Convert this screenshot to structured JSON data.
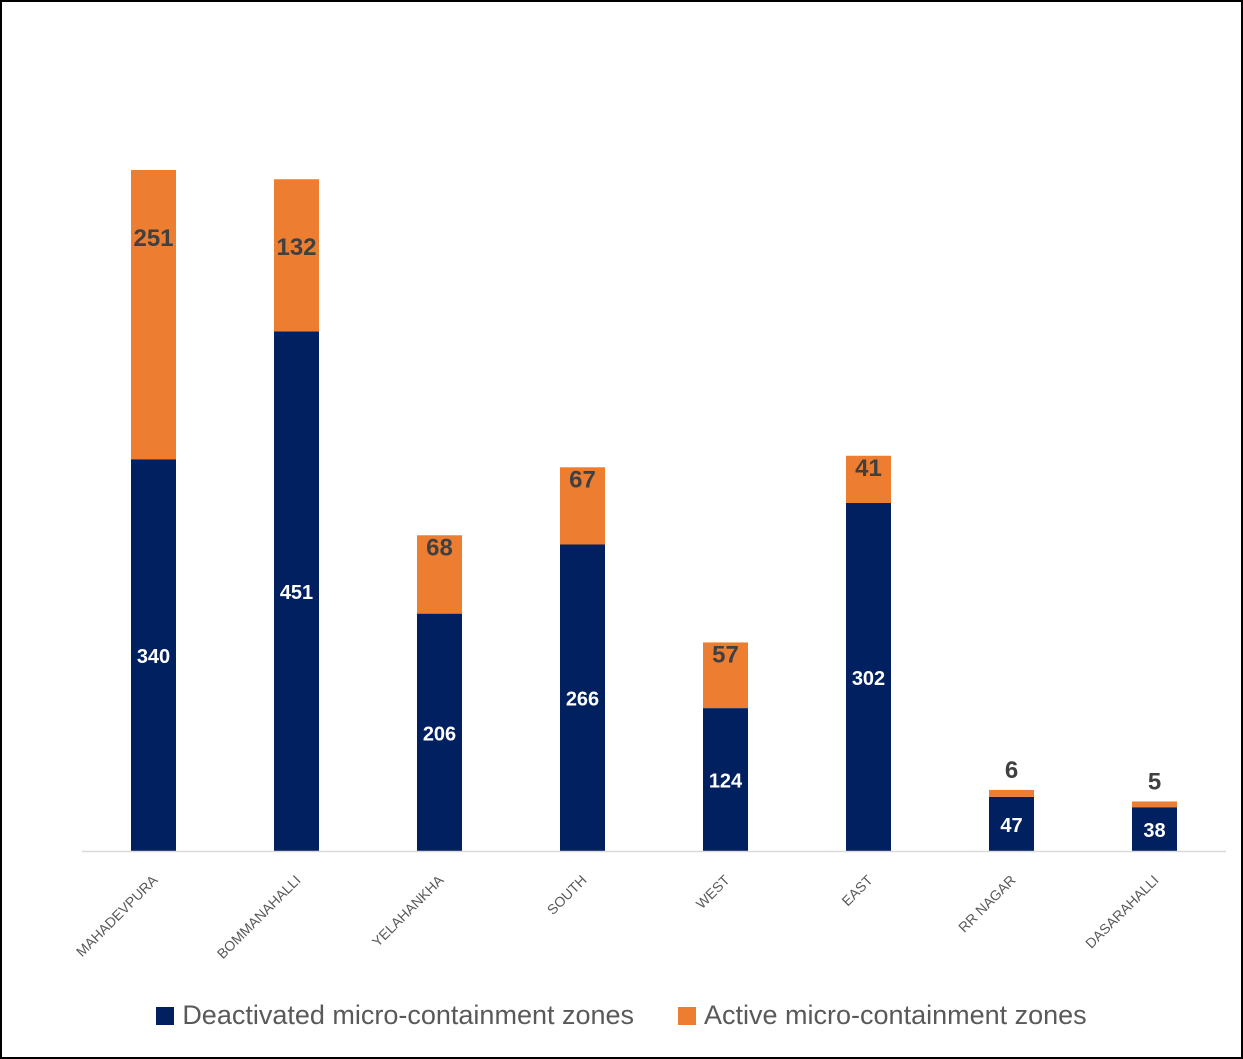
{
  "chart_data": {
    "type": "bar",
    "stacked": true,
    "categories": [
      "MAHADEVPURA",
      "BOMMANAHALLI",
      "YELAHANKHA",
      "SOUTH",
      "WEST",
      "EAST",
      "RR NAGAR",
      "DASARAHALLI"
    ],
    "series": [
      {
        "name": "Deactivated micro-containment zones",
        "values": [
          340,
          451,
          206,
          266,
          124,
          302,
          47,
          38
        ],
        "color": "#002060"
      },
      {
        "name": "Active micro-containment zones",
        "values": [
          251,
          132,
          68,
          67,
          57,
          41,
          6,
          5
        ],
        "color": "#ED7D31"
      }
    ],
    "ylim": [
      0,
      600
    ],
    "grid": false,
    "legend": "bottom"
  }
}
